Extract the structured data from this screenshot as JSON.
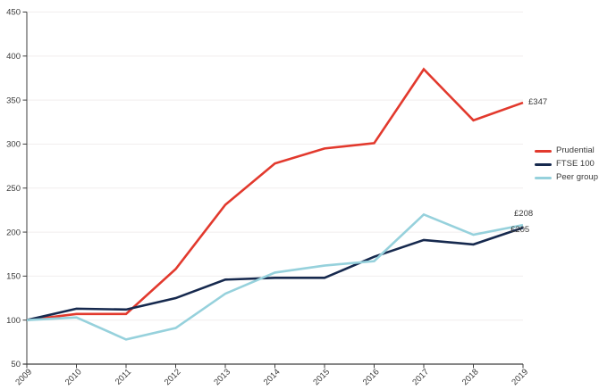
{
  "chart_data": {
    "type": "line",
    "title": "",
    "xlabel": "",
    "ylabel": "",
    "x": [
      "2009",
      "2010",
      "2011",
      "2012",
      "2013",
      "2014",
      "2015",
      "2016",
      "2017",
      "2018",
      "2019"
    ],
    "series": [
      {
        "name": "Prudential",
        "color": "#e2392d",
        "values": [
          100,
          107,
          107,
          158,
          231,
          278,
          295,
          301,
          385,
          327,
          347
        ],
        "end_label": "£347"
      },
      {
        "name": "FTSE 100",
        "color": "#16294e",
        "values": [
          100,
          113,
          112,
          125,
          146,
          148,
          148,
          172,
          191,
          186,
          205
        ],
        "end_label": "£205"
      },
      {
        "name": "Peer group",
        "color": "#96d1dc",
        "values": [
          100,
          103,
          78,
          91,
          130,
          154,
          162,
          167,
          220,
          197,
          208
        ],
        "end_label": "£208"
      }
    ],
    "ylim": [
      50,
      450
    ],
    "ytick_step": 50,
    "yticks": [
      "50",
      "100",
      "150",
      "200",
      "250",
      "300",
      "350",
      "400",
      "450"
    ],
    "grid": "horizontal",
    "legend_position": "right"
  },
  "colors": {
    "grid": "#f1eeee",
    "axis": "#3d3d3d",
    "tick_text": "#3a3a3a",
    "background": "#ffffff"
  }
}
